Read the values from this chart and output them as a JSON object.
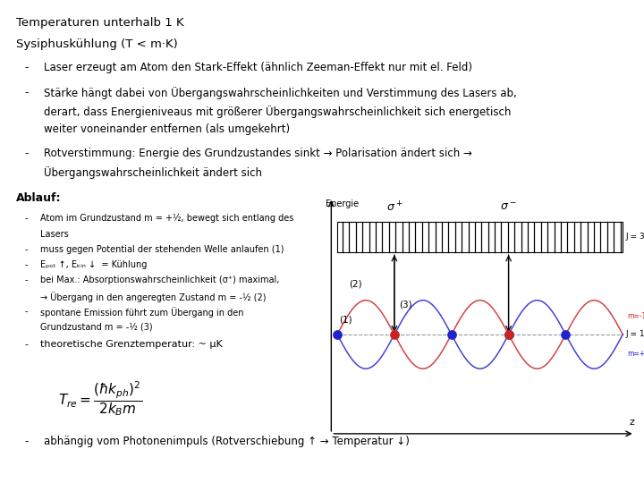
{
  "title": "Temperaturen unterhalb 1 K",
  "subtitle": "Sysiphuskühlung (T < m·K)",
  "bullet1": "Laser erzeugt am Atom den Stark-Effekt (ähnlich Zeeman-Effekt nur mit el. Feld)",
  "bullet2a": "Stärke hängt dabei von Übergangswahrscheinlichkeiten und Verstimmung des Lasers ab,",
  "bullet2b": "derart, dass Energieniveaus mit größerer Übergangswahrscheinlichkeit sich energetisch",
  "bullet2c": "weiter voneinander entfernen (als umgekehrt)",
  "bullet3a": "Rotverstimmung: Energie des Grundzustandes sinkt → Polarisation ändert sich →",
  "bullet3b": "Übergangswahrscheinlichkeit ändert sich",
  "ablauf_title": "Ablauf:",
  "ab1a": "Atom im Grundzustand m = +½, bewegt sich entlang des",
  "ab1b": "Lasers",
  "ab2": "muss gegen Potential der stehenden Welle anlaufen (1)",
  "ab3": "Eₚₒₜ ↑, Eₖᵢₙ ↓  = Kühlung",
  "ab4a": "bei Max.: Absorptionswahrscheinlichkeit (σ⁺) maximal,",
  "ab4b": "→ Übergang in den angeregten Zustand m = -½ (2)",
  "ab5a": "spontane Emission führt zum Übergang in den",
  "ab5b": "Grundzustand m = -½ (3)",
  "ab6": "theoretische Grenztemperatur: ~ μK",
  "ab7": "abhängig vom Photonenimpuls (Rotverschiebung ↑ → Temperatur ↓)",
  "bg_color": "#ffffff",
  "text_color": "#000000",
  "wave_color_blue": "#2222cc",
  "wave_color_red": "#cc2222"
}
